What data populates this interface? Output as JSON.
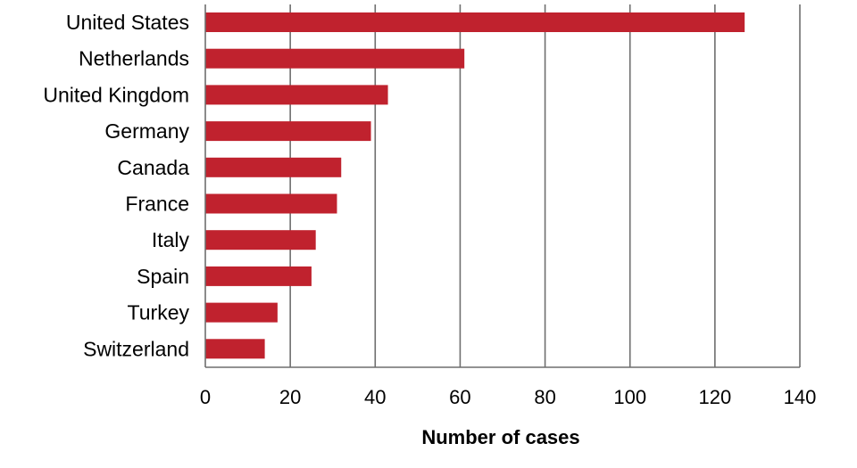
{
  "chart_data": {
    "type": "bar",
    "orientation": "horizontal",
    "title": "",
    "xlabel": "Number of cases",
    "ylabel": "",
    "categories": [
      "United States",
      "Netherlands",
      "United Kingdom",
      "Germany",
      "Canada",
      "France",
      "Italy",
      "Spain",
      "Turkey",
      "Switzerland"
    ],
    "values": [
      127,
      61,
      43,
      39,
      32,
      31,
      26,
      25,
      17,
      14
    ],
    "xlim": [
      0,
      140
    ],
    "xticks": [
      0,
      20,
      40,
      60,
      80,
      100,
      120,
      140
    ],
    "grid": "vertical",
    "legend": "none",
    "bar_color": "#c0222e"
  }
}
